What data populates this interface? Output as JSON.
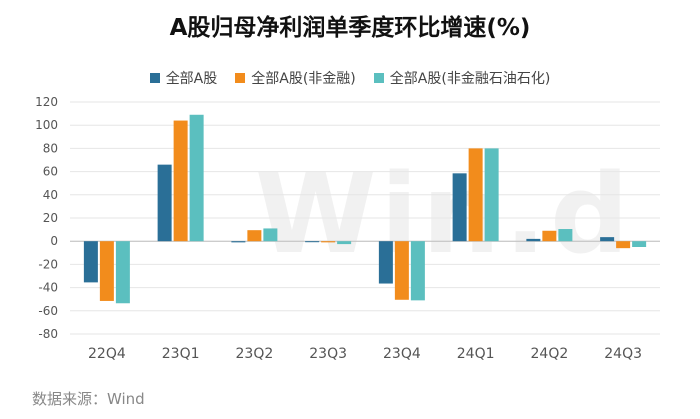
{
  "title": "A股归母净利润单季度环比增速(%)",
  "watermark": "Win.d",
  "source": "数据来源：Wind",
  "colors": {
    "s1": "#2a6f97",
    "s2": "#f28c1c",
    "s3": "#5bbfbf",
    "grid": "#e6e6e6",
    "axis": "#555555"
  },
  "chart_data": {
    "type": "bar",
    "title": "A股归母净利润单季度环比增速(%)",
    "xlabel": "",
    "ylabel": "",
    "ylim": [
      -80,
      120
    ],
    "yticks": [
      120,
      100,
      80,
      60,
      40,
      20,
      0,
      -20,
      -40,
      -60,
      -80
    ],
    "ytick_labels": [
      "120",
      "100",
      "80",
      "60",
      "40",
      "20",
      "0",
      "-20",
      "-40",
      "-60",
      "-80"
    ],
    "categories": [
      "22Q4",
      "23Q1",
      "23Q2",
      "23Q3",
      "23Q4",
      "24Q1",
      "24Q2",
      "24Q3"
    ],
    "series": [
      {
        "name": "全部A股",
        "values": [
          -35.5,
          66,
          -1,
          -0.5,
          -36.5,
          58.5,
          2,
          3.5
        ]
      },
      {
        "name": "全部A股(非金融)",
        "values": [
          -51.5,
          104,
          9.5,
          -1,
          -50.5,
          80,
          9,
          -6
        ]
      },
      {
        "name": "全部A股(非金融石油石化)",
        "values": [
          -53.5,
          109,
          11,
          -2.5,
          -51,
          80,
          10.5,
          -5
        ]
      }
    ],
    "legend": "top"
  }
}
